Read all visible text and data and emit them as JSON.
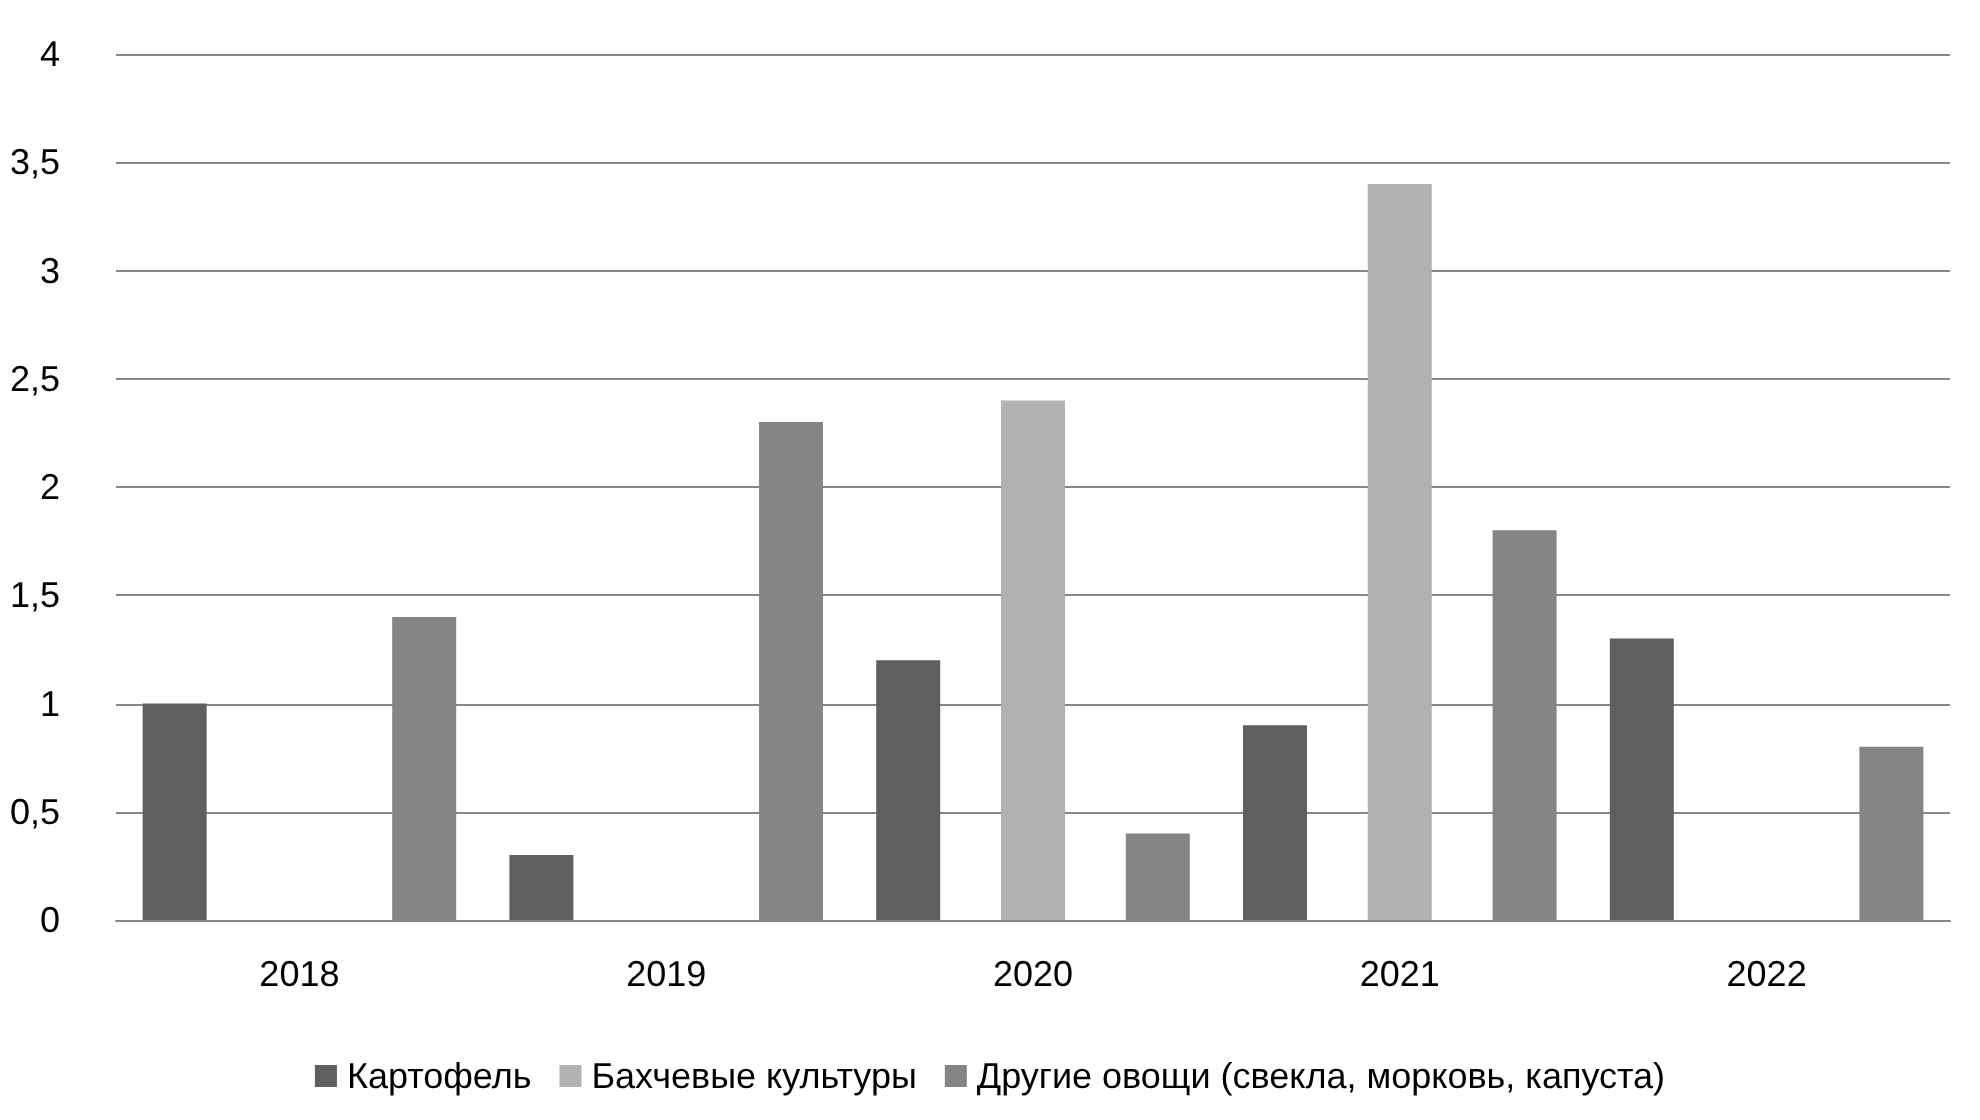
{
  "chart_data": {
    "type": "bar",
    "categories": [
      "2018",
      "2019",
      "2020",
      "2021",
      "2022"
    ],
    "series": [
      {
        "name": "Картофель",
        "color": "#5f5f5f",
        "values": [
          1,
          0.3,
          1.2,
          0.9,
          1.3
        ]
      },
      {
        "name": "Бахчевые культуры",
        "color": "#b2b2b2",
        "values": [
          0,
          0,
          2.4,
          3.4,
          0
        ]
      },
      {
        "name": "Другие овощи (свекла, морковь, капуста)",
        "color": "#858585",
        "values": [
          1.4,
          2.3,
          0.4,
          1.8,
          0.8
        ]
      }
    ],
    "ylim": [
      0,
      4
    ],
    "yticks": [
      0,
      {
        "value": 0.5,
        "label": "0,5"
      },
      1,
      {
        "value": 1.5,
        "label": "1,5"
      },
      2,
      {
        "value": 2.5,
        "label": "2,5"
      },
      3,
      {
        "value": 3.5,
        "label": "3,5"
      },
      4
    ],
    "grid": "y",
    "legend": "bottom"
  }
}
